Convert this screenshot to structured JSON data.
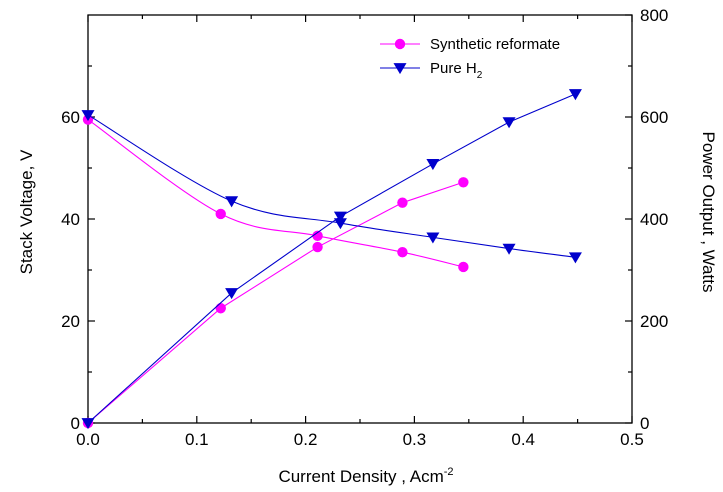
{
  "chart_data": {
    "type": "line",
    "xlabel": {
      "main": "Current Density , Acm",
      "sup": "-2"
    },
    "ylabel_left": "Stack Voltage, V",
    "ylabel_right": "Power Output , Watts",
    "xlim": [
      0,
      0.5
    ],
    "ylim_left": [
      0,
      80
    ],
    "ylim_right": [
      0,
      800
    ],
    "xticks": [
      "0.0",
      "0.1",
      "0.2",
      "0.3",
      "0.4",
      "0.5"
    ],
    "yticks_left": [
      "0",
      "20",
      "40",
      "60"
    ],
    "yticks_right": [
      "0",
      "200",
      "400",
      "600",
      "800"
    ],
    "legend_position": "top-right",
    "grid": false,
    "series": [
      {
        "name": "Synthetic reformate",
        "label_main": "Synthetic reformate",
        "color": "#ff00ff",
        "marker": "circle",
        "voltage": {
          "x": [
            0.0,
            0.122,
            0.211,
            0.289,
            0.345
          ],
          "y": [
            59.5,
            41.0,
            36.7,
            33.5,
            30.6
          ]
        },
        "power": {
          "x": [
            0.0,
            0.122,
            0.211,
            0.289,
            0.345
          ],
          "y": [
            0,
            225,
            345,
            432,
            472
          ]
        }
      },
      {
        "name": "Pure H2",
        "label_main": "Pure H",
        "label_sub": "2",
        "color": "#0000cc",
        "marker": "triangle-down",
        "voltage": {
          "x": [
            0.0,
            0.132,
            0.232,
            0.317,
            0.387,
            0.448
          ],
          "y": [
            60.4,
            43.5,
            39.2,
            36.4,
            34.2,
            32.5
          ]
        },
        "power": {
          "x": [
            0.0,
            0.132,
            0.232,
            0.317,
            0.387,
            0.448
          ],
          "y": [
            0,
            255,
            405,
            508,
            590,
            645
          ]
        }
      }
    ]
  }
}
